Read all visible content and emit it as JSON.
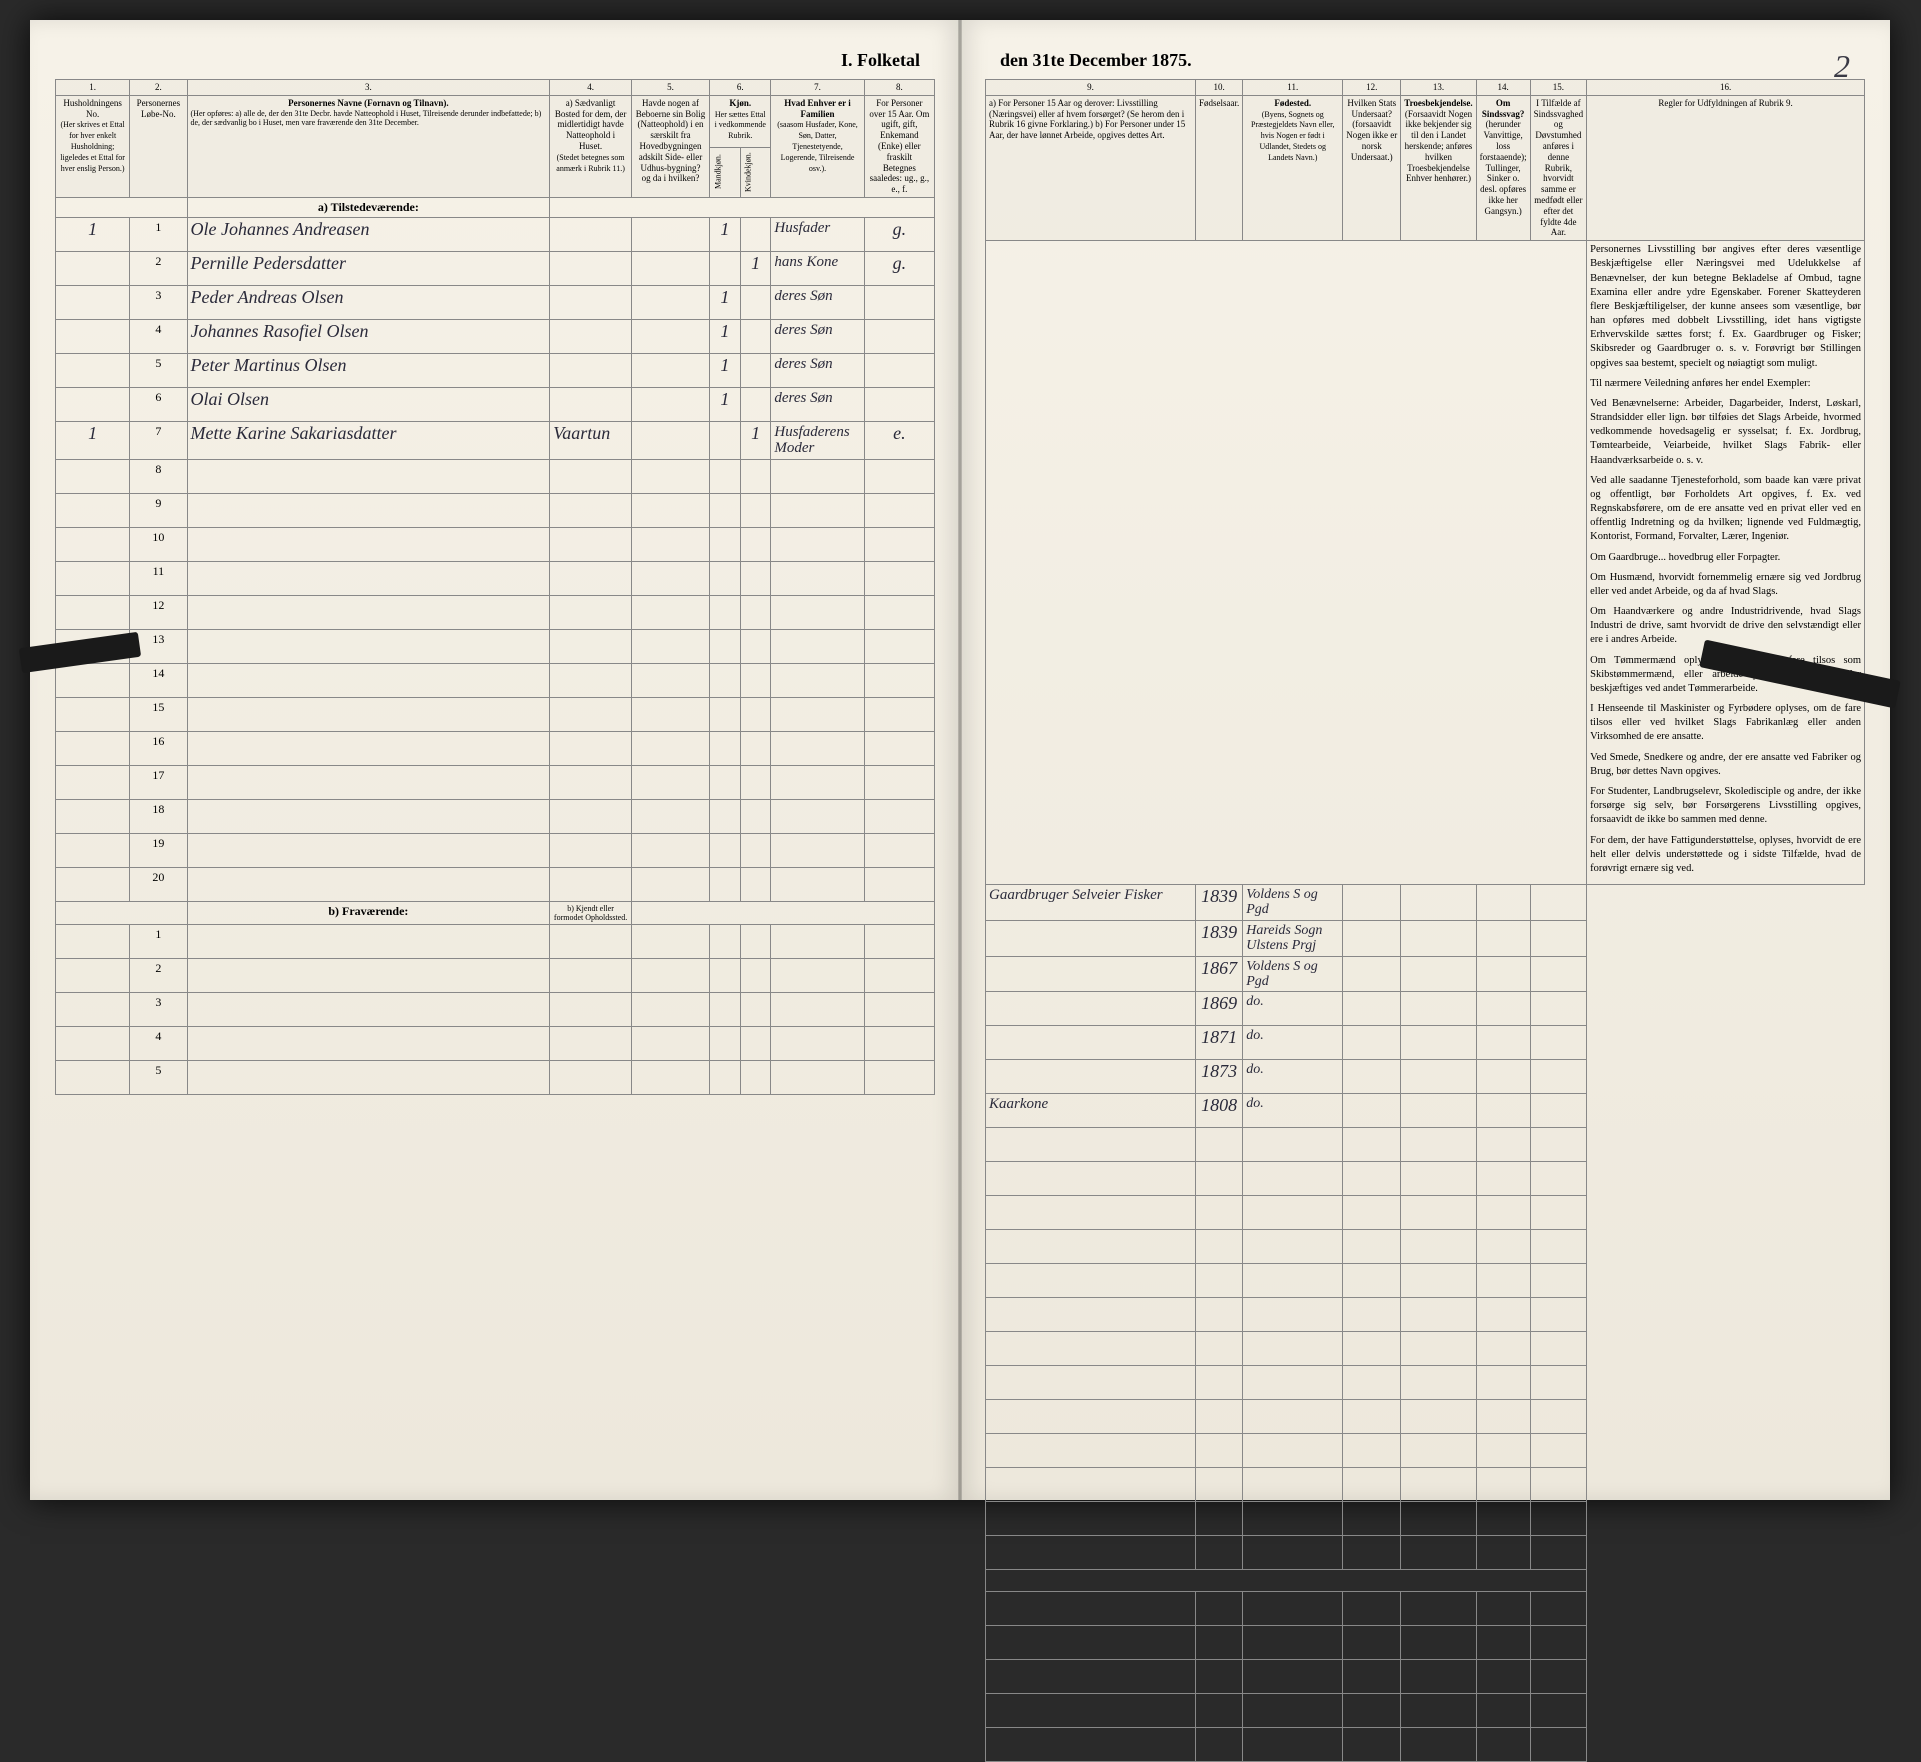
{
  "document": {
    "title_left": "I. Folketal",
    "title_right": "den 31te December 1875.",
    "page_number": "2"
  },
  "columns_left": {
    "c1": "1.",
    "c2": "2.",
    "c3": "3.",
    "c4": "4.",
    "c5": "5.",
    "c6": "6.",
    "c7": "7.",
    "c8": "8.",
    "h1": "Husholdningens No.",
    "h1_sub": "(Her skrives et Ettal for hver enkelt Husholdning; ligeledes et Ettal for hver enslig Person.)",
    "h2": "Personernes Løbe-No.",
    "h3": "Personernes Navne (Fornavn og Tilnavn).",
    "h3_sub": "(Her opføres:\na) alle de, der den 31te Decbr. havde Natteophold i Huset, Tilreisende derunder indbefattede;\nb) de, der sædvanlig bo i Huset, men vare fraværende den 31te December.",
    "h4": "a) Sædvanligt Bosted for dem, der midlertidigt havde Natteophold i Huset.",
    "h4_sub": "(Stedet betegnes som anmærk i Rubrik 11.)",
    "h5": "Havde nogen af Beboerne sin Bolig (Natteophold) i en særskilt fra Hovedbygningen adskilt Side- eller Udhus-bygning? og da i hvilken?",
    "h6_title": "Kjøn.",
    "h6": "Her sættes Ettal i vedkommende Rubrik.",
    "h6a": "Mandkjøn.",
    "h6b": "Kvindekjøn.",
    "h7": "Hvad Enhver er i Familien",
    "h7_sub": "(saasom Husfader, Kone, Søn, Datter, Tjenestetyende, Logerende, Tilreisende osv.).",
    "h8": "For Personer over 15 Aar. Om ugift, gift, Enkemand (Enke) eller fraskilt",
    "h8_sub": "Betegnes saaledes: ug., g., e., f."
  },
  "columns_right": {
    "c9": "9.",
    "c10": "10.",
    "c11": "11.",
    "c12": "12.",
    "c13": "13.",
    "c14": "14.",
    "c15": "15.",
    "c16": "16.",
    "h9": "a) For Personer 15 Aar og derover: Livsstilling (Næringsvei) eller af hvem forsørget? (Se herom den i Rubrik 16 givne Forklaring.)\nb) For Personer under 15 Aar, der have lønnet Arbeide, opgives dettes Art.",
    "h10": "Fødselsaar.",
    "h11": "Fødested.",
    "h11_sub": "(Byens, Sognets og Præstegjeldets Navn eller, hvis Nogen er født i Udlandet, Stedets og Landets Navn.)",
    "h12": "Hvilken Stats Undersaat?",
    "h12_sub": "(forsaavidt Nogen ikke er norsk Undersaat.)",
    "h13": "Troesbekjendelse.",
    "h13_sub": "(Forsaavidt Nogen ikke bekjender sig til den i Landet herskende; anføres hvilken Troesbekjendelse Enhver henhører.)",
    "h14": "Om Sindssvag?",
    "h14_sub": "(herunder Vanvittige, loss forstaaende); Tullinger, Sinker o. desl. opføres ikke her Gangsyn.)",
    "h15": "I Tilfælde af Sindssvaghed og Døvstumhed anføres i denne Rubrik, hvorvidt samme er medfødt eller efter det fyldte 4de Aar.",
    "h16": "Regler for Udfyldningen af Rubrik 9."
  },
  "section_a": "a) Tilstedeværende:",
  "section_b": "b) Fraværende:",
  "section_b_col4": "b) Kjendt eller formodet Opholdssted.",
  "rows": [
    {
      "n": "1",
      "hh": "1",
      "name": "Ole Johannes Andreasen",
      "col6a": "1",
      "family": "Husfader",
      "marital": "g.",
      "occupation": "Gaardbruger Selveier Fisker",
      "year": "1839",
      "place": "Voldens S og Pgd"
    },
    {
      "n": "2",
      "hh": "",
      "name": "Pernille Pedersdatter",
      "col6b": "1",
      "family": "hans Kone",
      "marital": "g.",
      "occupation": "",
      "year": "1839",
      "place": "Hareids Sogn Ulstens Prgj"
    },
    {
      "n": "3",
      "hh": "",
      "name": "Peder Andreas Olsen",
      "col6a": "1",
      "family": "deres Søn",
      "marital": "",
      "occupation": "",
      "year": "1867",
      "place": "Voldens S og Pgd"
    },
    {
      "n": "4",
      "hh": "",
      "name": "Johannes Rasofiel Olsen",
      "col6a": "1",
      "family": "deres Søn",
      "marital": "",
      "occupation": "",
      "year": "1869",
      "place": "do."
    },
    {
      "n": "5",
      "hh": "",
      "name": "Peter Martinus Olsen",
      "col6a": "1",
      "family": "deres Søn",
      "marital": "",
      "occupation": "",
      "year": "1871",
      "place": "do."
    },
    {
      "n": "6",
      "hh": "",
      "name": "Olai Olsen",
      "col6a": "1",
      "family": "deres Søn",
      "marital": "",
      "occupation": "",
      "year": "1873",
      "place": "do."
    },
    {
      "n": "7",
      "hh": "1",
      "name": "Mette Karine Sakariasdatter",
      "col4": "Vaartun",
      "col6b": "1",
      "family": "Husfaderens Moder",
      "marital": "e.",
      "occupation": "Kaarkone",
      "year": "1808",
      "place": "do."
    }
  ],
  "empty_rows_a": [
    "8",
    "9",
    "10",
    "11",
    "12",
    "13",
    "14",
    "15",
    "16",
    "17",
    "18",
    "19",
    "20"
  ],
  "empty_rows_b": [
    "1",
    "2",
    "3",
    "4",
    "5"
  ],
  "instructions": {
    "p1": "Personernes Livsstilling bør angives efter deres væsentlige Beskjæftigelse eller Næringsvei med Udelukkelse af Benævnelser, der kun betegne Bekladelse af Ombud, tagne Examina eller andre ydre Egenskaber. Forener Skatteyderen flere Beskjæftiligelser, der kunne ansees som væsentlige, bør han opføres med dobbelt Livsstilling, idet hans vigtigste Erhvervskilde sættes forst; f. Ex. Gaardbruger og Fisker; Skibsreder og Gaardbruger o. s. v. Forøvrigt bør Stillingen opgives saa bestemt, specielt og nøiagtigt som muligt.",
    "p2": "Til nærmere Veiledning anføres her endel Exempler:",
    "p3": "Ved Benævnelserne: Arbeider, Dagarbeider, Inderst, Løskarl, Strandsidder eller lign. bør tilføies det Slags Arbeide, hvormed vedkommende hovedsagelig er sysselsat; f. Ex. Jordbrug, Tømtearbeide, Veiarbeide, hvilket Slags Fabrik- eller Haandværksarbeide o. s. v.",
    "p4": "Ved alle saadanne Tjenesteforhold, som baade kan være privat og offentligt, bør Forholdets Art opgives, f. Ex. ved Regnskabsførere, om de ere ansatte ved en privat eller ved en offentlig Indretning og da hvilken; lignende ved Fuldmægtig, Kontorist, Formand, Forvalter, Lærer, Ingeniør.",
    "p5": "Om Gaardbruge... hovedbrug eller Forpagter.",
    "p6": "Om Husmænd, hvorvidt fornemmelig ernære sig ved Jordbrug eller ved andet Arbeide, og da af hvad Slags.",
    "p7": "Om Haandværkere og andre Industridrivende, hvad Slags Industri de drive, samt hvorvidt de drive den selvstændigt eller ere i andres Arbeide.",
    "p8": "Om Tømmermænd oplyses, hvorvidt de fare tilsos som Skibstømmermænd, eller arbeide paa Skibsværfter, eller beskjæftiges ved andet Tømmerarbeide.",
    "p9": "I Henseende til Maskinister og Fyrbødere oplyses, om de fare tilsos eller ved hvilket Slags Fabrikanlæg eller anden Virksomhed de ere ansatte.",
    "p10": "Ved Smede, Snedkere og andre, der ere ansatte ved Fabriker og Brug, bør dettes Navn opgives.",
    "p11": "For Studenter, Landbrugselevr, Skoledisciple og andre, der ikke forsørge sig selv, bør Forsørgerens Livsstilling opgives, forsaavidt de ikke bo sammen med denne.",
    "p12": "For dem, der have Fattigunderstøttelse, oplyses, hvorvidt de ere helt eller delvis understøttede og i sidste Tilfælde, hvad de forøvrigt ernære sig ved."
  },
  "colors": {
    "paper": "#f4f0e6",
    "ink": "#2a2a3a",
    "border": "#888888",
    "handwriting": "#2a2a3a"
  }
}
